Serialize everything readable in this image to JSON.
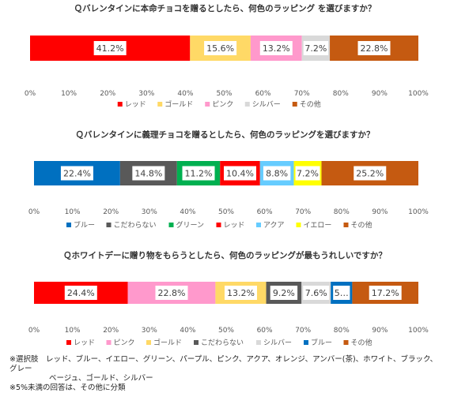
{
  "chart_data": [
    {
      "type": "bar",
      "stacked": true,
      "orientation": "horizontal",
      "title": "Ｑバレンタインに本命チョコを贈るとしたら、何色のラッピング を選びますか？",
      "xlim": [
        0,
        100
      ],
      "tick_labels": [
        "0%",
        "10%",
        "20%",
        "30%",
        "40%",
        "50%",
        "60%",
        "70%",
        "80%",
        "90%",
        "100%"
      ],
      "grid": false,
      "legend_position": "bottom",
      "series": [
        {
          "name": "レッド",
          "value": 41.2,
          "label": "41.2%",
          "color": "#ff0000"
        },
        {
          "name": "ゴールド",
          "value": 15.6,
          "label": "15.6%",
          "color": "#ffd966"
        },
        {
          "name": "ピンク",
          "value": 13.2,
          "label": "13.2%",
          "color": "#ff99cc"
        },
        {
          "name": "シルバー",
          "value": 7.2,
          "label": "7.2%",
          "color": "#d9d9d9"
        },
        {
          "name": "その他",
          "value": 22.8,
          "label": "22.8%",
          "color": "#c55a11"
        }
      ]
    },
    {
      "type": "bar",
      "stacked": true,
      "orientation": "horizontal",
      "title": "Ｑバレンタインに義理チョコを贈るとしたら、何色のラッピングを選びますか？",
      "xlim": [
        0,
        100
      ],
      "tick_labels": [
        "0%",
        "10%",
        "20%",
        "30%",
        "40%",
        "50%",
        "60%",
        "70%",
        "80%",
        "90%",
        "100%"
      ],
      "grid": false,
      "legend_position": "bottom",
      "series": [
        {
          "name": "ブルー",
          "value": 22.4,
          "label": "22.4%",
          "color": "#0070c0"
        },
        {
          "name": "こだわらない",
          "value": 14.8,
          "label": "14.8%",
          "color": "#595959"
        },
        {
          "name": "グリーン",
          "value": 11.2,
          "label": "11.2%",
          "color": "#00b050"
        },
        {
          "name": "レッド",
          "value": 10.4,
          "label": "10.4%",
          "color": "#ff0000"
        },
        {
          "name": "アクア",
          "value": 8.8,
          "label": "8.8%",
          "color": "#66ccff"
        },
        {
          "name": "イエロー",
          "value": 7.2,
          "label": "7.2%",
          "color": "#ffff00"
        },
        {
          "name": "その他",
          "value": 25.2,
          "label": "25.2%",
          "color": "#c55a11"
        }
      ]
    },
    {
      "type": "bar",
      "stacked": true,
      "orientation": "horizontal",
      "title": "Ｑホワイトデーに贈り物をもらうとしたら、何色のラッピングが最もうれしいですか？",
      "xlim": [
        0,
        100
      ],
      "tick_labels": [
        "0%",
        "10%",
        "20%",
        "30%",
        "40%",
        "50%",
        "60%",
        "70%",
        "80%",
        "90%",
        "100%"
      ],
      "grid": false,
      "legend_position": "bottom",
      "series": [
        {
          "name": "レッド",
          "value": 24.4,
          "label": "24.4%",
          "color": "#ff0000"
        },
        {
          "name": "ピンク",
          "value": 22.8,
          "label": "22.8%",
          "color": "#ff99cc"
        },
        {
          "name": "ゴールド",
          "value": 13.2,
          "label": "13.2%",
          "color": "#ffd966"
        },
        {
          "name": "こだわらない",
          "value": 9.2,
          "label": "9.2%",
          "color": "#595959"
        },
        {
          "name": "シルバー",
          "value": 7.6,
          "label": "7.6%",
          "color": "#d9d9d9"
        },
        {
          "name": "ブルー",
          "value": 5.6,
          "label": "5…",
          "color": "#0070c0"
        },
        {
          "name": "その他",
          "value": 17.2,
          "label": "17.2%",
          "color": "#c55a11"
        }
      ]
    }
  ],
  "notes": {
    "line1_a": "※選択肢　レッド、ブルー、イエロー、グリーン、パープル、ピンク、アクア、オレンジ、アンバー(茶)、ホワイト、ブラック、グレー",
    "line1_b": "ベージュ、ゴールド、シルバー",
    "line2": "※5%未満の回答は、その他に分類"
  }
}
